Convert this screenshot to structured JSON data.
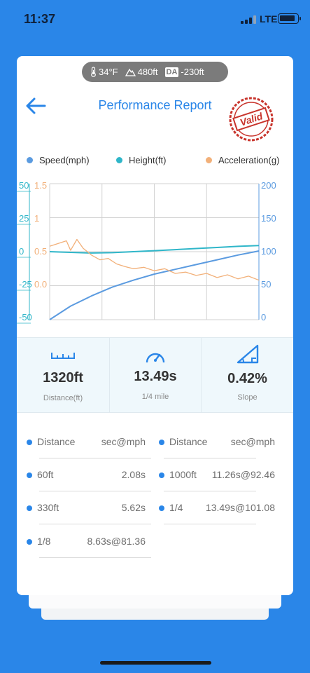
{
  "status_bar": {
    "time": "11:37",
    "network": "LTE"
  },
  "conditions": {
    "temperature": "34°F",
    "altitude": "480ft",
    "density_altitude_label": "DA",
    "density_altitude": "-230ft"
  },
  "header": {
    "title": "Performance Report",
    "stamp": "Valid"
  },
  "legend": [
    {
      "label": "Speed(mph)",
      "color": "#5b9be0"
    },
    {
      "label": "Height(ft)",
      "color": "#2fb6c9"
    },
    {
      "label": "Acceleration(g)",
      "color": "#f2b079"
    }
  ],
  "chart_data": {
    "type": "line",
    "series": [
      {
        "name": "Speed(mph)",
        "axis": "right",
        "color": "#5b9be0",
        "x": [
          0,
          10,
          20,
          30,
          40,
          50,
          60,
          70,
          80,
          90,
          100
        ],
        "values": [
          0,
          20,
          35,
          48,
          58,
          67,
          74,
          81,
          88,
          95,
          101
        ]
      },
      {
        "name": "Height(ft)",
        "axis": "left",
        "color": "#2fb6c9",
        "x": [
          0,
          10,
          20,
          30,
          40,
          50,
          60,
          70,
          80,
          90,
          100
        ],
        "values": [
          0,
          -0.5,
          -1,
          -0.7,
          0,
          0.7,
          1.5,
          2.3,
          3.1,
          3.9,
          4.5
        ]
      },
      {
        "name": "Acceleration(g)",
        "axis": "left2",
        "color": "#f2b079",
        "x": [
          0,
          4,
          8,
          10,
          13,
          16,
          20,
          24,
          28,
          32,
          36,
          40,
          45,
          50,
          55,
          60,
          65,
          70,
          75,
          80,
          85,
          90,
          95,
          100
        ],
        "values": [
          0.58,
          0.62,
          0.66,
          0.52,
          0.68,
          0.55,
          0.45,
          0.38,
          0.4,
          0.32,
          0.28,
          0.25,
          0.27,
          0.22,
          0.25,
          0.18,
          0.2,
          0.15,
          0.18,
          0.12,
          0.16,
          0.1,
          0.14,
          0.08
        ]
      }
    ],
    "y_left_ticks": [
      "50",
      "25",
      "0",
      "-25",
      "-50"
    ],
    "y_left2_ticks": [
      "1.5",
      "1",
      "0.5",
      "0.0"
    ],
    "y_right_ticks": [
      "200",
      "150",
      "100",
      "50",
      "0"
    ],
    "ylim_left": [
      -50,
      50
    ],
    "ylim_left2": [
      -0.5,
      1.5
    ],
    "ylim_right": [
      0,
      200
    ],
    "xlim": [
      0,
      100
    ],
    "grid": true
  },
  "stats": [
    {
      "value": "1320ft",
      "label": "Distance(ft)"
    },
    {
      "value": "13.49s",
      "label": "1/4 mile"
    },
    {
      "value": "0.42%",
      "label": "Slope"
    }
  ],
  "results": {
    "headers": [
      {
        "distance": "Distance",
        "time": "sec@mph"
      },
      {
        "distance": "Distance",
        "time": "sec@mph"
      }
    ],
    "left": [
      {
        "distance": "60ft",
        "time": "2.08s"
      },
      {
        "distance": "330ft",
        "time": "5.62s"
      },
      {
        "distance": "1/8",
        "time": "8.63s@81.36"
      }
    ],
    "right": [
      {
        "distance": "1000ft",
        "time": "11.26s@92.46"
      },
      {
        "distance": "1/4",
        "time": "13.49s@101.08"
      }
    ]
  }
}
